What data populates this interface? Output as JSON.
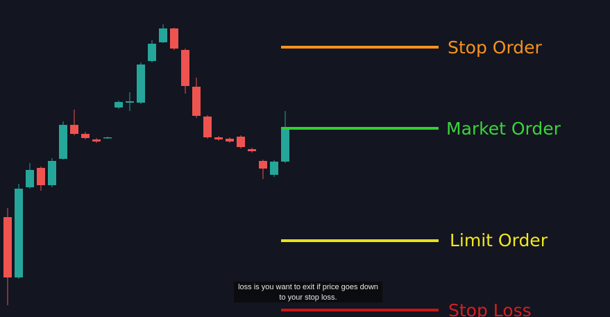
{
  "labels": [
    "Stop Order",
    "Market Order",
    "Limit Order",
    "Stop Loss"
  ],
  "caption": [
    "loss is you want to exit if price goes down",
    "to your stop loss."
  ]
}
